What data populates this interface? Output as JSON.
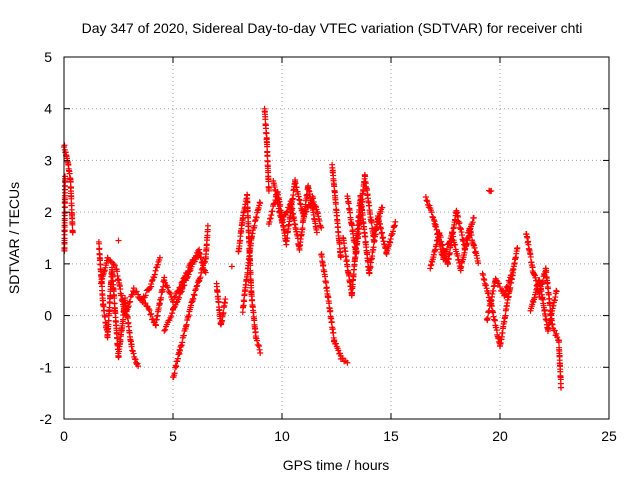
{
  "chart_data": {
    "type": "scatter",
    "title": "Day 347 of 2020, Sidereal Day-to-day VTEC variation (SDTVAR) for receiver chti",
    "xlabel": "GPS time / hours",
    "ylabel": "SDTVAR / TECUs",
    "xlim": [
      0,
      25
    ],
    "ylim": [
      -2,
      5
    ],
    "xticks": [
      0,
      5,
      10,
      15,
      20,
      25
    ],
    "yticks": [
      -2,
      -1,
      0,
      1,
      2,
      3,
      4,
      5
    ],
    "grid": true,
    "marker": "+",
    "color": "#ff0000",
    "series": [
      {
        "name": "SDTVAR",
        "segments": [
          {
            "x": [
              0.0,
              0.1,
              0.2,
              0.3,
              0.4
            ],
            "y": [
              3.3,
              3.1,
              2.9,
              2.6,
              1.6
            ]
          },
          {
            "x": [
              0.02,
              0.05
            ],
            "y": [
              1.25,
              2.7
            ]
          },
          {
            "x": [
              1.6,
              1.8,
              2.0,
              2.2,
              2.5,
              2.8,
              3.1,
              3.4
            ],
            "y": [
              1.4,
              0.2,
              -0.4,
              0.9,
              -0.8,
              0.3,
              -0.6,
              -1.0
            ]
          },
          {
            "x": [
              1.7,
              2.0,
              2.4,
              2.8,
              3.2,
              3.6,
              4.0,
              4.4
            ],
            "y": [
              0.6,
              1.1,
              0.9,
              0.0,
              0.5,
              0.3,
              0.6,
              1.1
            ]
          },
          {
            "x": [
              2.5
            ],
            "y": [
              1.45
            ]
          },
          {
            "x": [
              3.4,
              3.8,
              4.2,
              4.6,
              5.0,
              5.4,
              5.8,
              6.2
            ],
            "y": [
              0.4,
              0.2,
              -0.2,
              0.7,
              0.3,
              0.6,
              1.0,
              1.3
            ]
          },
          {
            "x": [
              5.0,
              5.3,
              5.6,
              5.9,
              6.2,
              6.5,
              6.6
            ],
            "y": [
              -1.2,
              -0.7,
              -0.2,
              0.3,
              0.7,
              1.1,
              1.7
            ]
          },
          {
            "x": [
              4.6,
              5.0,
              5.4,
              5.8,
              6.2,
              6.5
            ],
            "y": [
              -0.3,
              0.1,
              0.5,
              0.9,
              1.2,
              0.8
            ]
          },
          {
            "x": [
              7.0,
              7.2,
              7.4
            ],
            "y": [
              0.6,
              -0.2,
              0.3
            ]
          },
          {
            "x": [
              7.7
            ],
            "y": [
              0.95
            ]
          },
          {
            "x": [
              8.0,
              8.2,
              8.4,
              8.6,
              8.8,
              9.0
            ],
            "y": [
              1.2,
              1.9,
              2.3,
              0.4,
              -0.4,
              -0.7
            ]
          },
          {
            "x": [
              8.2,
              8.6,
              9.0
            ],
            "y": [
              0.1,
              1.5,
              2.2
            ]
          },
          {
            "x": [
              9.2,
              9.3,
              9.4
            ],
            "y": [
              4.0,
              3.4,
              2.4
            ]
          },
          {
            "x": [
              9.4,
              9.8,
              10.2,
              10.6,
              11.0,
              11.4,
              11.8
            ],
            "y": [
              1.8,
              2.4,
              1.4,
              2.6,
              1.9,
              2.3,
              1.7
            ]
          },
          {
            "x": [
              9.6,
              10.0,
              10.4,
              10.8,
              11.2,
              11.6
            ],
            "y": [
              2.6,
              1.8,
              2.2,
              1.3,
              2.5,
              1.6
            ]
          },
          {
            "x": [
              11.8,
              12.1,
              12.4,
              12.7,
              13.0
            ],
            "y": [
              1.2,
              0.4,
              -0.5,
              -0.8,
              -0.9
            ]
          },
          {
            "x": [
              12.3,
              12.5,
              12.7
            ],
            "y": [
              2.9,
              2.0,
              1.1
            ]
          },
          {
            "x": [
              12.8,
              13.2,
              13.6,
              14.0,
              14.4,
              14.8,
              15.2
            ],
            "y": [
              1.5,
              0.4,
              2.3,
              0.8,
              1.9,
              1.2,
              1.8
            ]
          },
          {
            "x": [
              13.0,
              13.4,
              13.8,
              14.2,
              14.6
            ],
            "y": [
              2.3,
              1.2,
              2.7,
              1.5,
              2.1
            ]
          },
          {
            "x": [
              16.6,
              17.0,
              17.4,
              17.8,
              18.2,
              18.6,
              19.0
            ],
            "y": [
              2.3,
              1.8,
              1.1,
              1.6,
              0.9,
              1.7,
              1.0
            ]
          },
          {
            "x": [
              16.8,
              17.2,
              17.6,
              18.0,
              18.4,
              18.8
            ],
            "y": [
              0.9,
              1.6,
              1.0,
              2.0,
              1.3,
              1.9
            ]
          },
          {
            "x": [
              19.5,
              19.6
            ],
            "y": [
              2.45,
              2.4
            ]
          },
          {
            "x": [
              19.2,
              19.6,
              20.0,
              20.4,
              20.8
            ],
            "y": [
              0.8,
              0.2,
              -0.6,
              0.4,
              1.3
            ]
          },
          {
            "x": [
              19.4,
              19.8,
              20.2,
              20.6
            ],
            "y": [
              -0.1,
              0.7,
              0.4,
              0.9
            ]
          },
          {
            "x": [
              21.2,
              21.5,
              21.8,
              22.1,
              22.4,
              22.7,
              22.8
            ],
            "y": [
              1.6,
              0.9,
              0.4,
              0.9,
              -0.2,
              -0.5,
              -1.4
            ]
          },
          {
            "x": [
              21.4,
              21.8,
              22.2,
              22.6
            ],
            "y": [
              0.1,
              0.7,
              -0.3,
              0.5
            ]
          }
        ]
      }
    ]
  }
}
